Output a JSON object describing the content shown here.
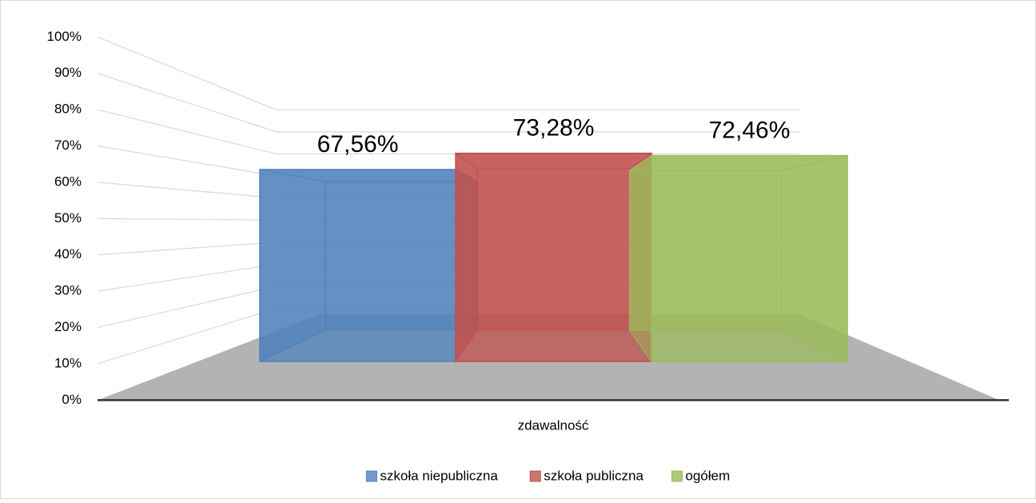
{
  "chart_data": {
    "type": "bar",
    "categories": [
      "zdawalność"
    ],
    "series": [
      {
        "name": "szkoła niepubliczna",
        "color": "#4f81bd",
        "values": [
          67.56
        ],
        "value_labels": [
          "67,56%"
        ]
      },
      {
        "name": "szkoła publiczna",
        "color": "#c0504d",
        "values": [
          73.28
        ],
        "value_labels": [
          "73,28%"
        ]
      },
      {
        "name": "ogółem",
        "color": "#9bbb59",
        "values": [
          72.46
        ],
        "value_labels": [
          "72,46%"
        ]
      }
    ],
    "ylim": [
      0,
      100
    ],
    "yticks": [
      {
        "value": 0,
        "label": "0%"
      },
      {
        "value": 10,
        "label": "10%"
      },
      {
        "value": 20,
        "label": "20%"
      },
      {
        "value": 30,
        "label": "30%"
      },
      {
        "value": 40,
        "label": "40%"
      },
      {
        "value": 50,
        "label": "50%"
      },
      {
        "value": 60,
        "label": "60%"
      },
      {
        "value": 70,
        "label": "70%"
      },
      {
        "value": 80,
        "label": "80%"
      },
      {
        "value": 90,
        "label": "90%"
      },
      {
        "value": 100,
        "label": "100%"
      }
    ],
    "grid": true,
    "legend": "bottom"
  }
}
